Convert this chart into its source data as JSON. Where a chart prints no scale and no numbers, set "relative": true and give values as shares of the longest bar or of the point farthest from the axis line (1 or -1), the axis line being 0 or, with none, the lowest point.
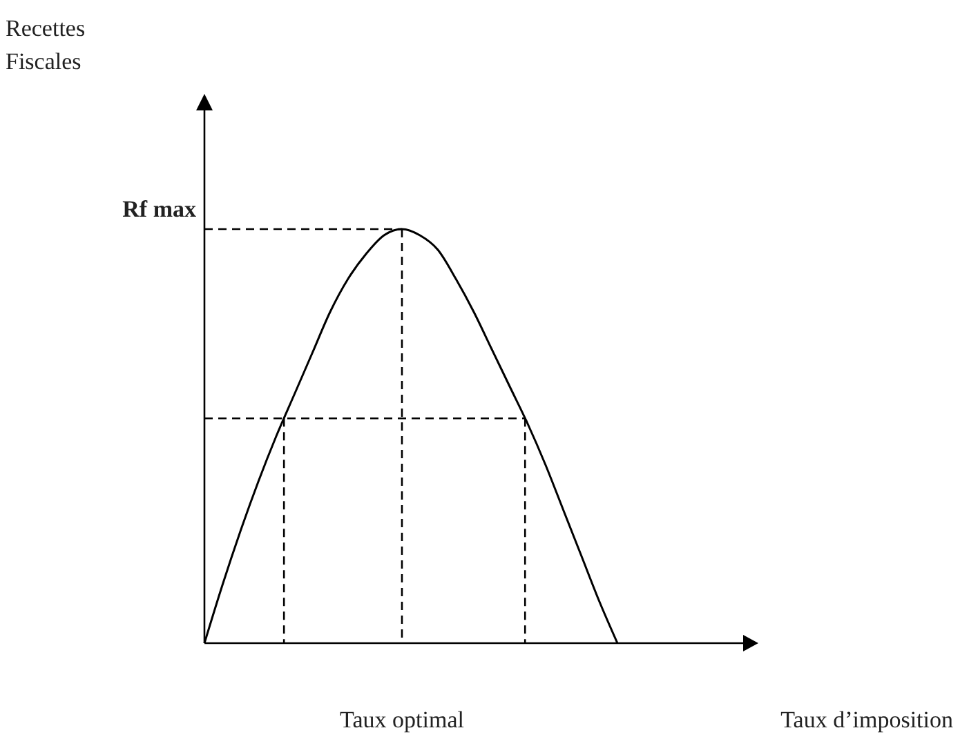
{
  "chart_data": {
    "type": "line",
    "relative": true,
    "color": "#000000",
    "marker": "none",
    "line_style": "solid",
    "annotations": [
      "Taux optimal",
      "Recettes\nFiscales",
      "Taux d’imposition"
    ],
    "categories": [
      null,
      null,
      null,
      null,
      null,
      null,
      null,
      null,
      null,
      null,
      null,
      null,
      null,
      null,
      null,
      null,
      null,
      null,
      null,
      null,
      null,
      null,
      null,
      null
    ],
    "values": [
      0,
      0.14,
      0.27,
      0.39,
      0.5,
      0.6,
      0.7,
      0.8,
      0.88,
      0.94,
      0.985,
      1,
      0.985,
      0.95,
      0.88,
      0.8,
      0.71,
      0.62,
      0.53,
      0.43,
      0.32,
      0.21,
      0.1,
      0
    ],
    "ref_lines": [
      {
        "axis": "y",
        "value": 1,
        "label": "Rf max",
        "line_style": "dashed"
      },
      {
        "axis": "y",
        "value": 0.543,
        "label": null,
        "line_style": "dashed"
      }
    ]
  }
}
